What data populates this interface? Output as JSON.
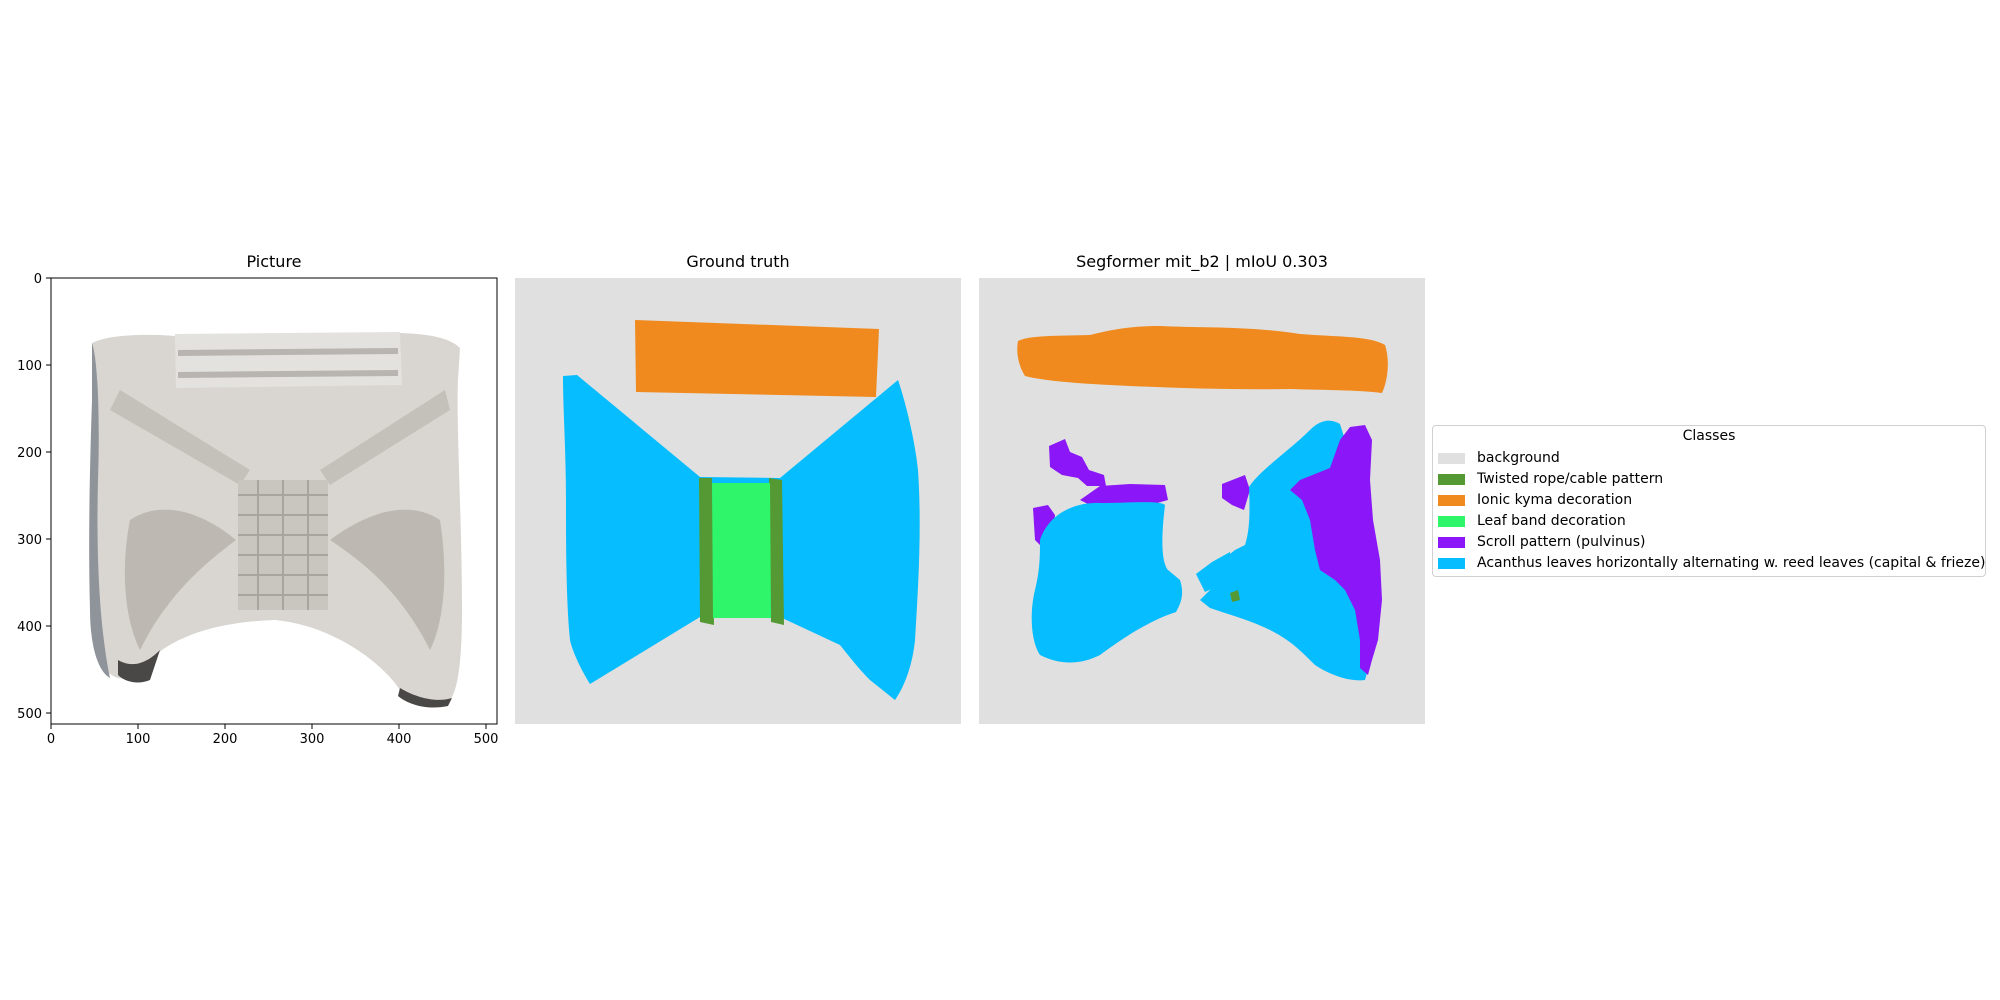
{
  "panels": {
    "picture_title": "Picture",
    "ground_truth_title": "Ground truth",
    "prediction_title": "Segformer mit_b2 | mIoU 0.303"
  },
  "axes": {
    "x_ticks": [
      "0",
      "100",
      "200",
      "300",
      "400",
      "500"
    ],
    "y_ticks": [
      "0",
      "100",
      "200",
      "300",
      "400",
      "500"
    ]
  },
  "legend": {
    "title": "Classes",
    "items": [
      {
        "label": "background",
        "color": "#e0e0e0"
      },
      {
        "label": "Twisted rope/cable pattern",
        "color": "#559934"
      },
      {
        "label": "Ionic kyma decoration",
        "color": "#f08a1f"
      },
      {
        "label": "Leaf band decoration",
        "color": "#2ff56a"
      },
      {
        "label": "Scroll pattern (pulvinus)",
        "color": "#8b16f7"
      },
      {
        "label": "Acanthus leaves horizontally alternating w. reed leaves (capital & frieze)",
        "color": "#05bdff"
      }
    ]
  }
}
